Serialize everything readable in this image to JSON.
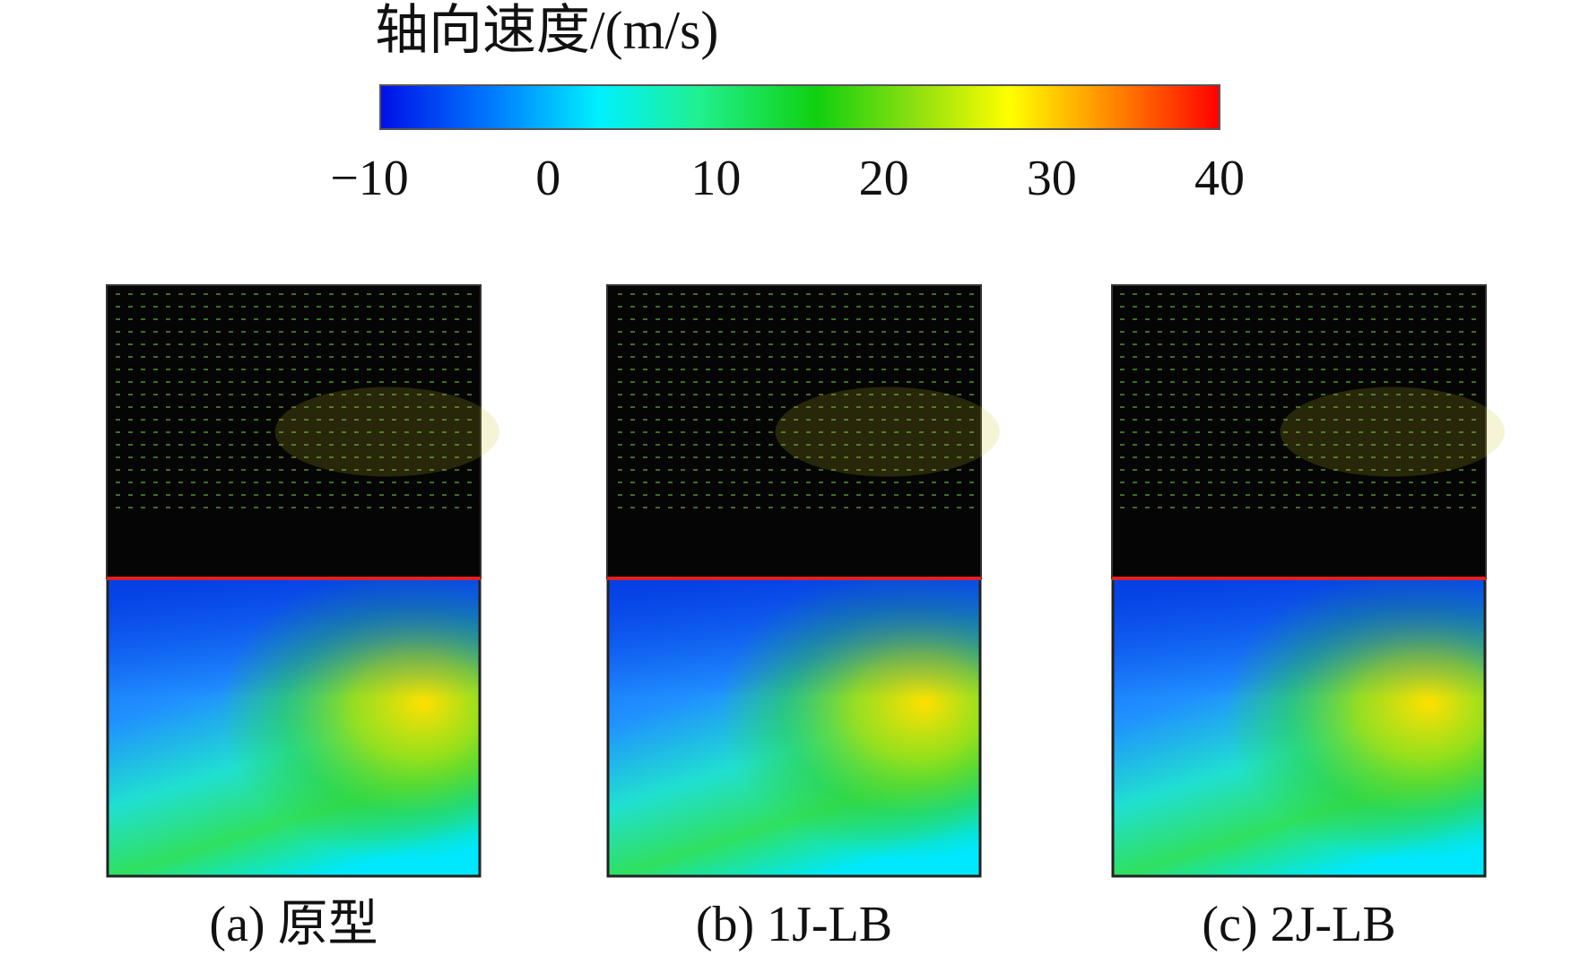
{
  "colorbar": {
    "title": "轴向速度/(m/s)",
    "range": [
      -10,
      40
    ],
    "ticks": [
      {
        "value": -10,
        "label": "−10"
      },
      0,
      10,
      20,
      30,
      40
    ]
  },
  "panels": [
    {
      "label": "(a) 原型"
    },
    {
      "label": "(b) 1J-LB"
    },
    {
      "label": "(c) 2J-LB"
    }
  ]
}
